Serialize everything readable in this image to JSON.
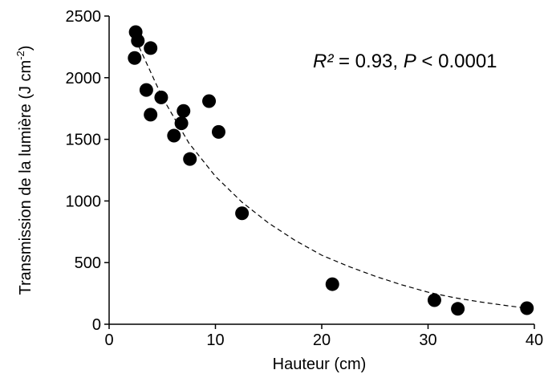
{
  "chart_data": {
    "type": "scatter",
    "xlabel": "Hauteur (cm)",
    "ylabel_main": "Transmission de la lumière (J cm",
    "ylabel_sup": "-2",
    "ylabel_end": ")",
    "xlim": [
      0,
      40
    ],
    "ylim": [
      0,
      2500
    ],
    "xticks": [
      0,
      10,
      20,
      30,
      40
    ],
    "yticks": [
      0,
      500,
      1000,
      1500,
      2000,
      2500
    ],
    "grid": false,
    "legend": "none",
    "marker_color": "#000000",
    "fit_line": {
      "style": "dashed",
      "color": "#000000",
      "x": [
        2.5,
        5,
        7.5,
        10,
        12.5,
        15,
        17.5,
        20,
        22.5,
        25,
        27.5,
        30,
        32.5,
        35,
        37.5,
        39.3
      ],
      "y": [
        2310,
        1840,
        1470,
        1200,
        990,
        820,
        680,
        560,
        470,
        390,
        320,
        260,
        215,
        180,
        150,
        130
      ]
    },
    "points": [
      {
        "x": 2.5,
        "y": 2370
      },
      {
        "x": 2.7,
        "y": 2300
      },
      {
        "x": 2.4,
        "y": 2160
      },
      {
        "x": 3.9,
        "y": 2240
      },
      {
        "x": 3.5,
        "y": 1900
      },
      {
        "x": 3.9,
        "y": 1700
      },
      {
        "x": 4.9,
        "y": 1840
      },
      {
        "x": 7.0,
        "y": 1730
      },
      {
        "x": 6.8,
        "y": 1630
      },
      {
        "x": 6.1,
        "y": 1530
      },
      {
        "x": 9.4,
        "y": 1810
      },
      {
        "x": 10.3,
        "y": 1560
      },
      {
        "x": 7.6,
        "y": 1340
      },
      {
        "x": 12.5,
        "y": 900
      },
      {
        "x": 21.0,
        "y": 325
      },
      {
        "x": 30.6,
        "y": 195
      },
      {
        "x": 32.8,
        "y": 125
      },
      {
        "x": 39.3,
        "y": 130
      }
    ],
    "annotation": {
      "r_label": "R²",
      "r_value": " = 0.93, ",
      "p_label": "P",
      "p_value": " < 0.0001"
    }
  }
}
